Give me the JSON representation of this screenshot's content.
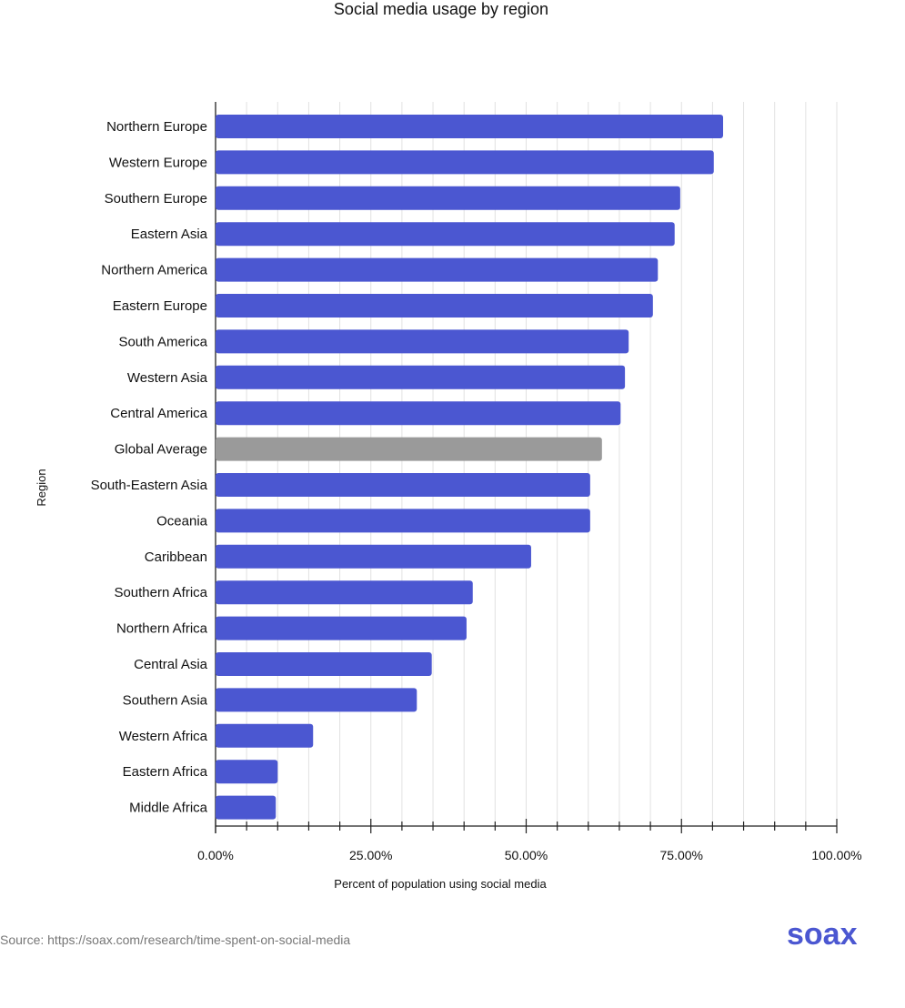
{
  "chart_data": {
    "type": "bar",
    "orientation": "horizontal",
    "title": "Social media usage by region",
    "xlabel": "Percent of population using social media",
    "ylabel": "Region",
    "xlim": [
      0,
      100
    ],
    "x_ticks": [
      "0.00%",
      "25.00%",
      "50.00%",
      "75.00%",
      "100.00%"
    ],
    "grid": "vertical, every 5%",
    "categories": [
      "Northern Europe",
      "Western Europe",
      "Southern Europe",
      "Eastern Asia",
      "Northern America",
      "Eastern Europe",
      "South America",
      "Western Asia",
      "Central America",
      "Global Average",
      "South-Eastern Asia",
      "Oceania",
      "Caribbean",
      "Southern Africa",
      "Northern Africa",
      "Central Asia",
      "Southern Asia",
      "Western Africa",
      "Eastern Africa",
      "Middle Africa"
    ],
    "values": [
      81.7,
      80.2,
      74.8,
      73.9,
      71.2,
      70.4,
      66.5,
      65.9,
      65.2,
      62.2,
      60.3,
      60.3,
      50.8,
      41.4,
      40.4,
      34.8,
      32.4,
      15.7,
      10.0,
      9.7
    ],
    "colors": {
      "bar": "#4b57d1",
      "highlight": "#9a9a9a"
    },
    "highlight_category": "Global Average"
  },
  "footer": {
    "source": "Source: https://soax.com/research/time-spent-on-social-media",
    "logo": "soax"
  }
}
